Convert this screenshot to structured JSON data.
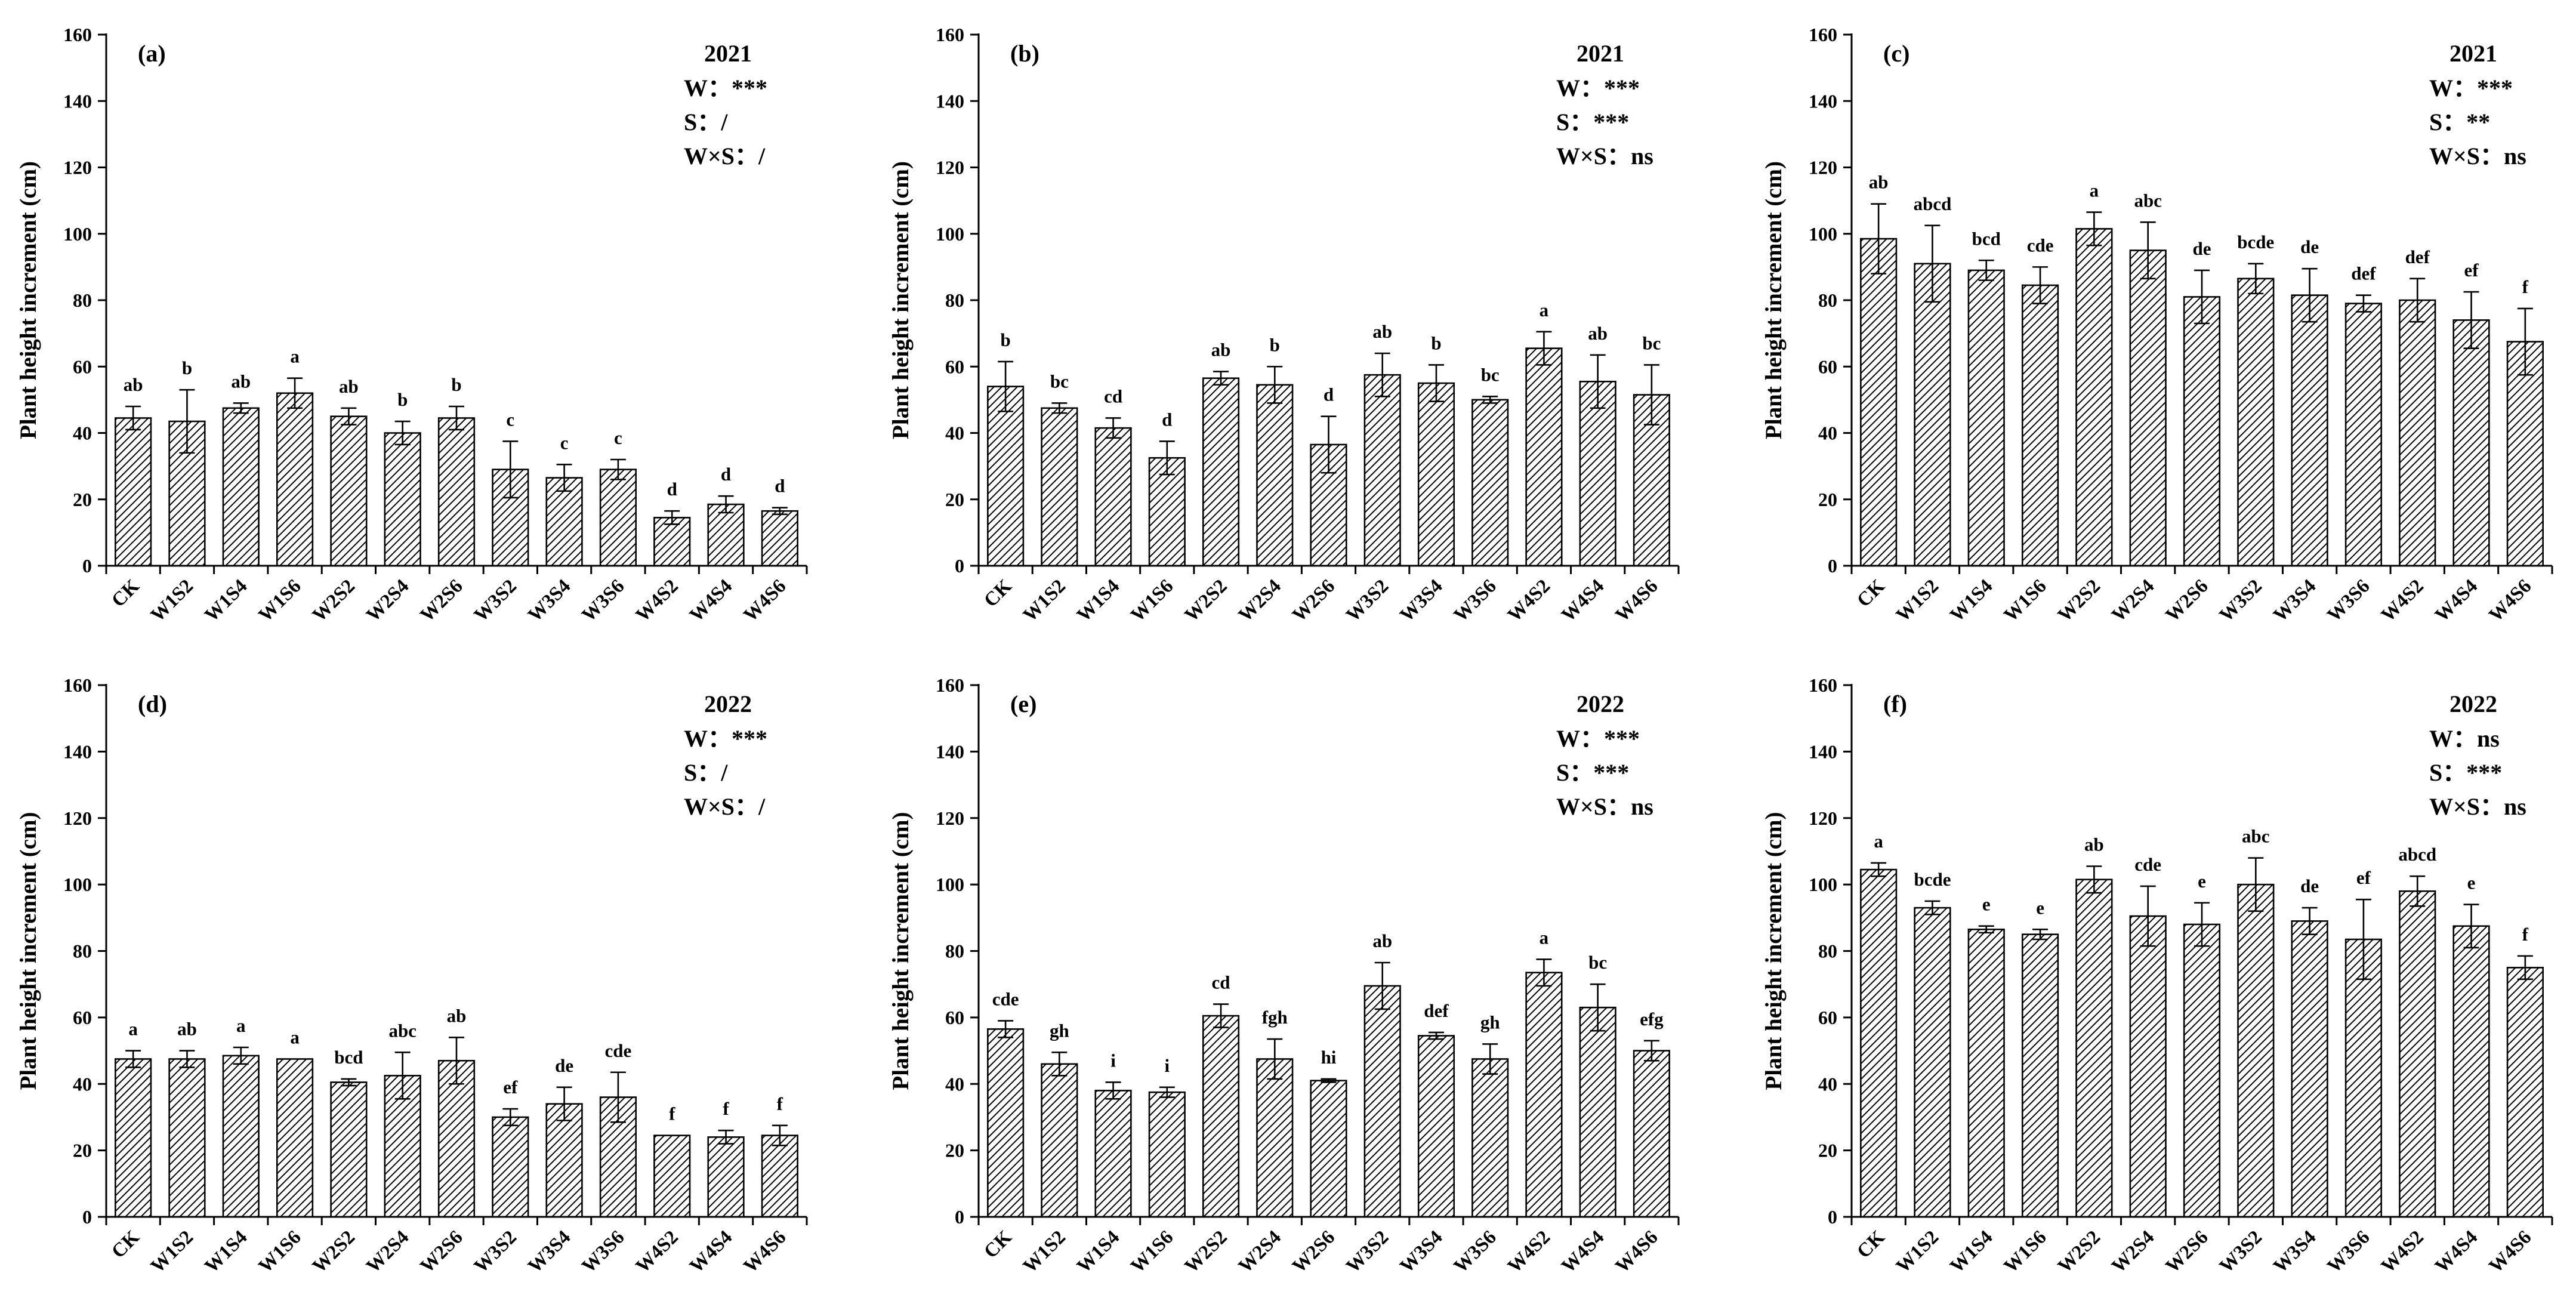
{
  "chart_data": [
    {
      "type": "bar",
      "panel": "(a)",
      "year": "2021",
      "significance": [
        "W：***",
        "S：/",
        "W×S：/"
      ],
      "ylabel": "Plant height increment (cm)",
      "ylim": [
        0,
        160
      ],
      "yticks": [
        0,
        20,
        40,
        60,
        80,
        100,
        120,
        140,
        160
      ],
      "categories": [
        "CK",
        "W1S2",
        "W1S4",
        "W1S6",
        "W2S2",
        "W2S4",
        "W2S6",
        "W3S2",
        "W3S4",
        "W3S6",
        "W4S2",
        "W4S4",
        "W4S6"
      ],
      "values": [
        44.5,
        43.5,
        47.5,
        52,
        45,
        40,
        44.5,
        29,
        26.5,
        29,
        14.5,
        18.5,
        16.5
      ],
      "errors": [
        3.5,
        9.5,
        1.5,
        4.5,
        2.5,
        3.5,
        3.5,
        8.5,
        4,
        3,
        2,
        2.5,
        1
      ],
      "letters": [
        "ab",
        "b",
        "ab",
        "a",
        "ab",
        "b",
        "b",
        "c",
        "c",
        "c",
        "d",
        "d",
        "d"
      ]
    },
    {
      "type": "bar",
      "panel": "(b)",
      "year": "2021",
      "significance": [
        "W：***",
        "S：***",
        "W×S：ns"
      ],
      "ylabel": "Plant height increment (cm)",
      "ylim": [
        0,
        160
      ],
      "yticks": [
        0,
        20,
        40,
        60,
        80,
        100,
        120,
        140,
        160
      ],
      "categories": [
        "CK",
        "W1S2",
        "W1S4",
        "W1S6",
        "W2S2",
        "W2S4",
        "W2S6",
        "W3S2",
        "W3S4",
        "W3S6",
        "W4S2",
        "W4S4",
        "W4S6"
      ],
      "values": [
        54,
        47.5,
        41.5,
        32.5,
        56.5,
        54.5,
        36.5,
        57.5,
        55,
        50,
        65.5,
        55.5,
        51.5
      ],
      "errors": [
        7.5,
        1.5,
        3,
        5,
        2,
        5.5,
        8.5,
        6.5,
        5.5,
        1,
        5,
        8,
        9
      ],
      "letters": [
        "b",
        "bc",
        "cd",
        "d",
        "ab",
        "b",
        "d",
        "ab",
        "b",
        "bc",
        "a",
        "ab",
        "bc"
      ]
    },
    {
      "type": "bar",
      "panel": "(c)",
      "year": "2021",
      "significance": [
        "W：***",
        "S：**",
        "W×S：ns"
      ],
      "ylabel": "Plant height increment (cm)",
      "ylim": [
        0,
        160
      ],
      "yticks": [
        0,
        20,
        40,
        60,
        80,
        100,
        120,
        140,
        160
      ],
      "categories": [
        "CK",
        "W1S2",
        "W1S4",
        "W1S6",
        "W2S2",
        "W2S4",
        "W2S6",
        "W3S2",
        "W3S4",
        "W3S6",
        "W4S2",
        "W4S4",
        "W4S6"
      ],
      "values": [
        98.5,
        91,
        89,
        84.5,
        101.5,
        95,
        81,
        86.5,
        81.5,
        79,
        80,
        74,
        67.5
      ],
      "errors": [
        10.5,
        11.5,
        3,
        5.5,
        5,
        8.5,
        8,
        4.5,
        8,
        2.5,
        6.5,
        8.5,
        10
      ],
      "letters": [
        "ab",
        "abcd",
        "bcd",
        "cde",
        "a",
        "abc",
        "de",
        "bcde",
        "de",
        "def",
        "def",
        "ef",
        "f"
      ]
    },
    {
      "type": "bar",
      "panel": "(d)",
      "year": "2022",
      "significance": [
        "W：***",
        "S：/",
        "W×S：/"
      ],
      "ylabel": "Plant height increment (cm)",
      "ylim": [
        0,
        160
      ],
      "yticks": [
        0,
        20,
        40,
        60,
        80,
        100,
        120,
        140,
        160
      ],
      "categories": [
        "CK",
        "W1S2",
        "W1S4",
        "W1S6",
        "W2S2",
        "W2S4",
        "W2S6",
        "W3S2",
        "W3S4",
        "W3S6",
        "W4S2",
        "W4S4",
        "W4S6"
      ],
      "values": [
        47.5,
        47.5,
        48.5,
        47.5,
        40.5,
        42.5,
        47,
        30,
        34,
        36,
        24.5,
        24,
        24.5
      ],
      "errors": [
        2.5,
        2.5,
        2.5,
        0,
        1,
        7,
        7,
        2.5,
        5,
        7.5,
        0,
        2,
        3
      ],
      "letters": [
        "a",
        "ab",
        "a",
        "a",
        "bcd",
        "abc",
        "ab",
        "ef",
        "de",
        "cde",
        "f",
        "f",
        "f"
      ]
    },
    {
      "type": "bar",
      "panel": "(e)",
      "year": "2022",
      "significance": [
        "W：***",
        "S：***",
        "W×S：ns"
      ],
      "ylabel": "Plant height increment (cm)",
      "ylim": [
        0,
        160
      ],
      "yticks": [
        0,
        20,
        40,
        60,
        80,
        100,
        120,
        140,
        160
      ],
      "categories": [
        "CK",
        "W1S2",
        "W1S4",
        "W1S6",
        "W2S2",
        "W2S4",
        "W2S6",
        "W3S2",
        "W3S4",
        "W3S6",
        "W4S2",
        "W4S4",
        "W4S6"
      ],
      "values": [
        56.5,
        46,
        38,
        37.5,
        60.5,
        47.5,
        41,
        69.5,
        54.5,
        47.5,
        73.5,
        63,
        50
      ],
      "errors": [
        2.5,
        3.5,
        2.5,
        1.5,
        3.5,
        6,
        0.5,
        7,
        1,
        4.5,
        4,
        7,
        3
      ],
      "letters": [
        "cde",
        "gh",
        "i",
        "i",
        "cd",
        "fgh",
        "hi",
        "ab",
        "def",
        "gh",
        "a",
        "bc",
        "efg"
      ]
    },
    {
      "type": "bar",
      "panel": "(f)",
      "year": "2022",
      "significance": [
        "W：ns",
        "S：***",
        "W×S：ns"
      ],
      "ylabel": "Plant height increment (cm)",
      "ylim": [
        0,
        160
      ],
      "yticks": [
        0,
        20,
        40,
        60,
        80,
        100,
        120,
        140,
        160
      ],
      "categories": [
        "CK",
        "W1S2",
        "W1S4",
        "W1S6",
        "W2S2",
        "W2S4",
        "W2S6",
        "W3S2",
        "W3S4",
        "W3S6",
        "W4S2",
        "W4S4",
        "W4S6"
      ],
      "values": [
        104.5,
        93,
        86.5,
        85,
        101.5,
        90.5,
        88,
        100,
        89,
        83.5,
        98,
        87.5,
        75
      ],
      "errors": [
        2,
        2,
        1,
        1.5,
        4,
        9,
        6.5,
        8,
        4,
        12,
        4.5,
        6.5,
        3.5
      ],
      "letters": [
        "a",
        "bcde",
        "e",
        "e",
        "ab",
        "cde",
        "e",
        "abc",
        "de",
        "ef",
        "abcd",
        "e",
        "f"
      ]
    }
  ]
}
